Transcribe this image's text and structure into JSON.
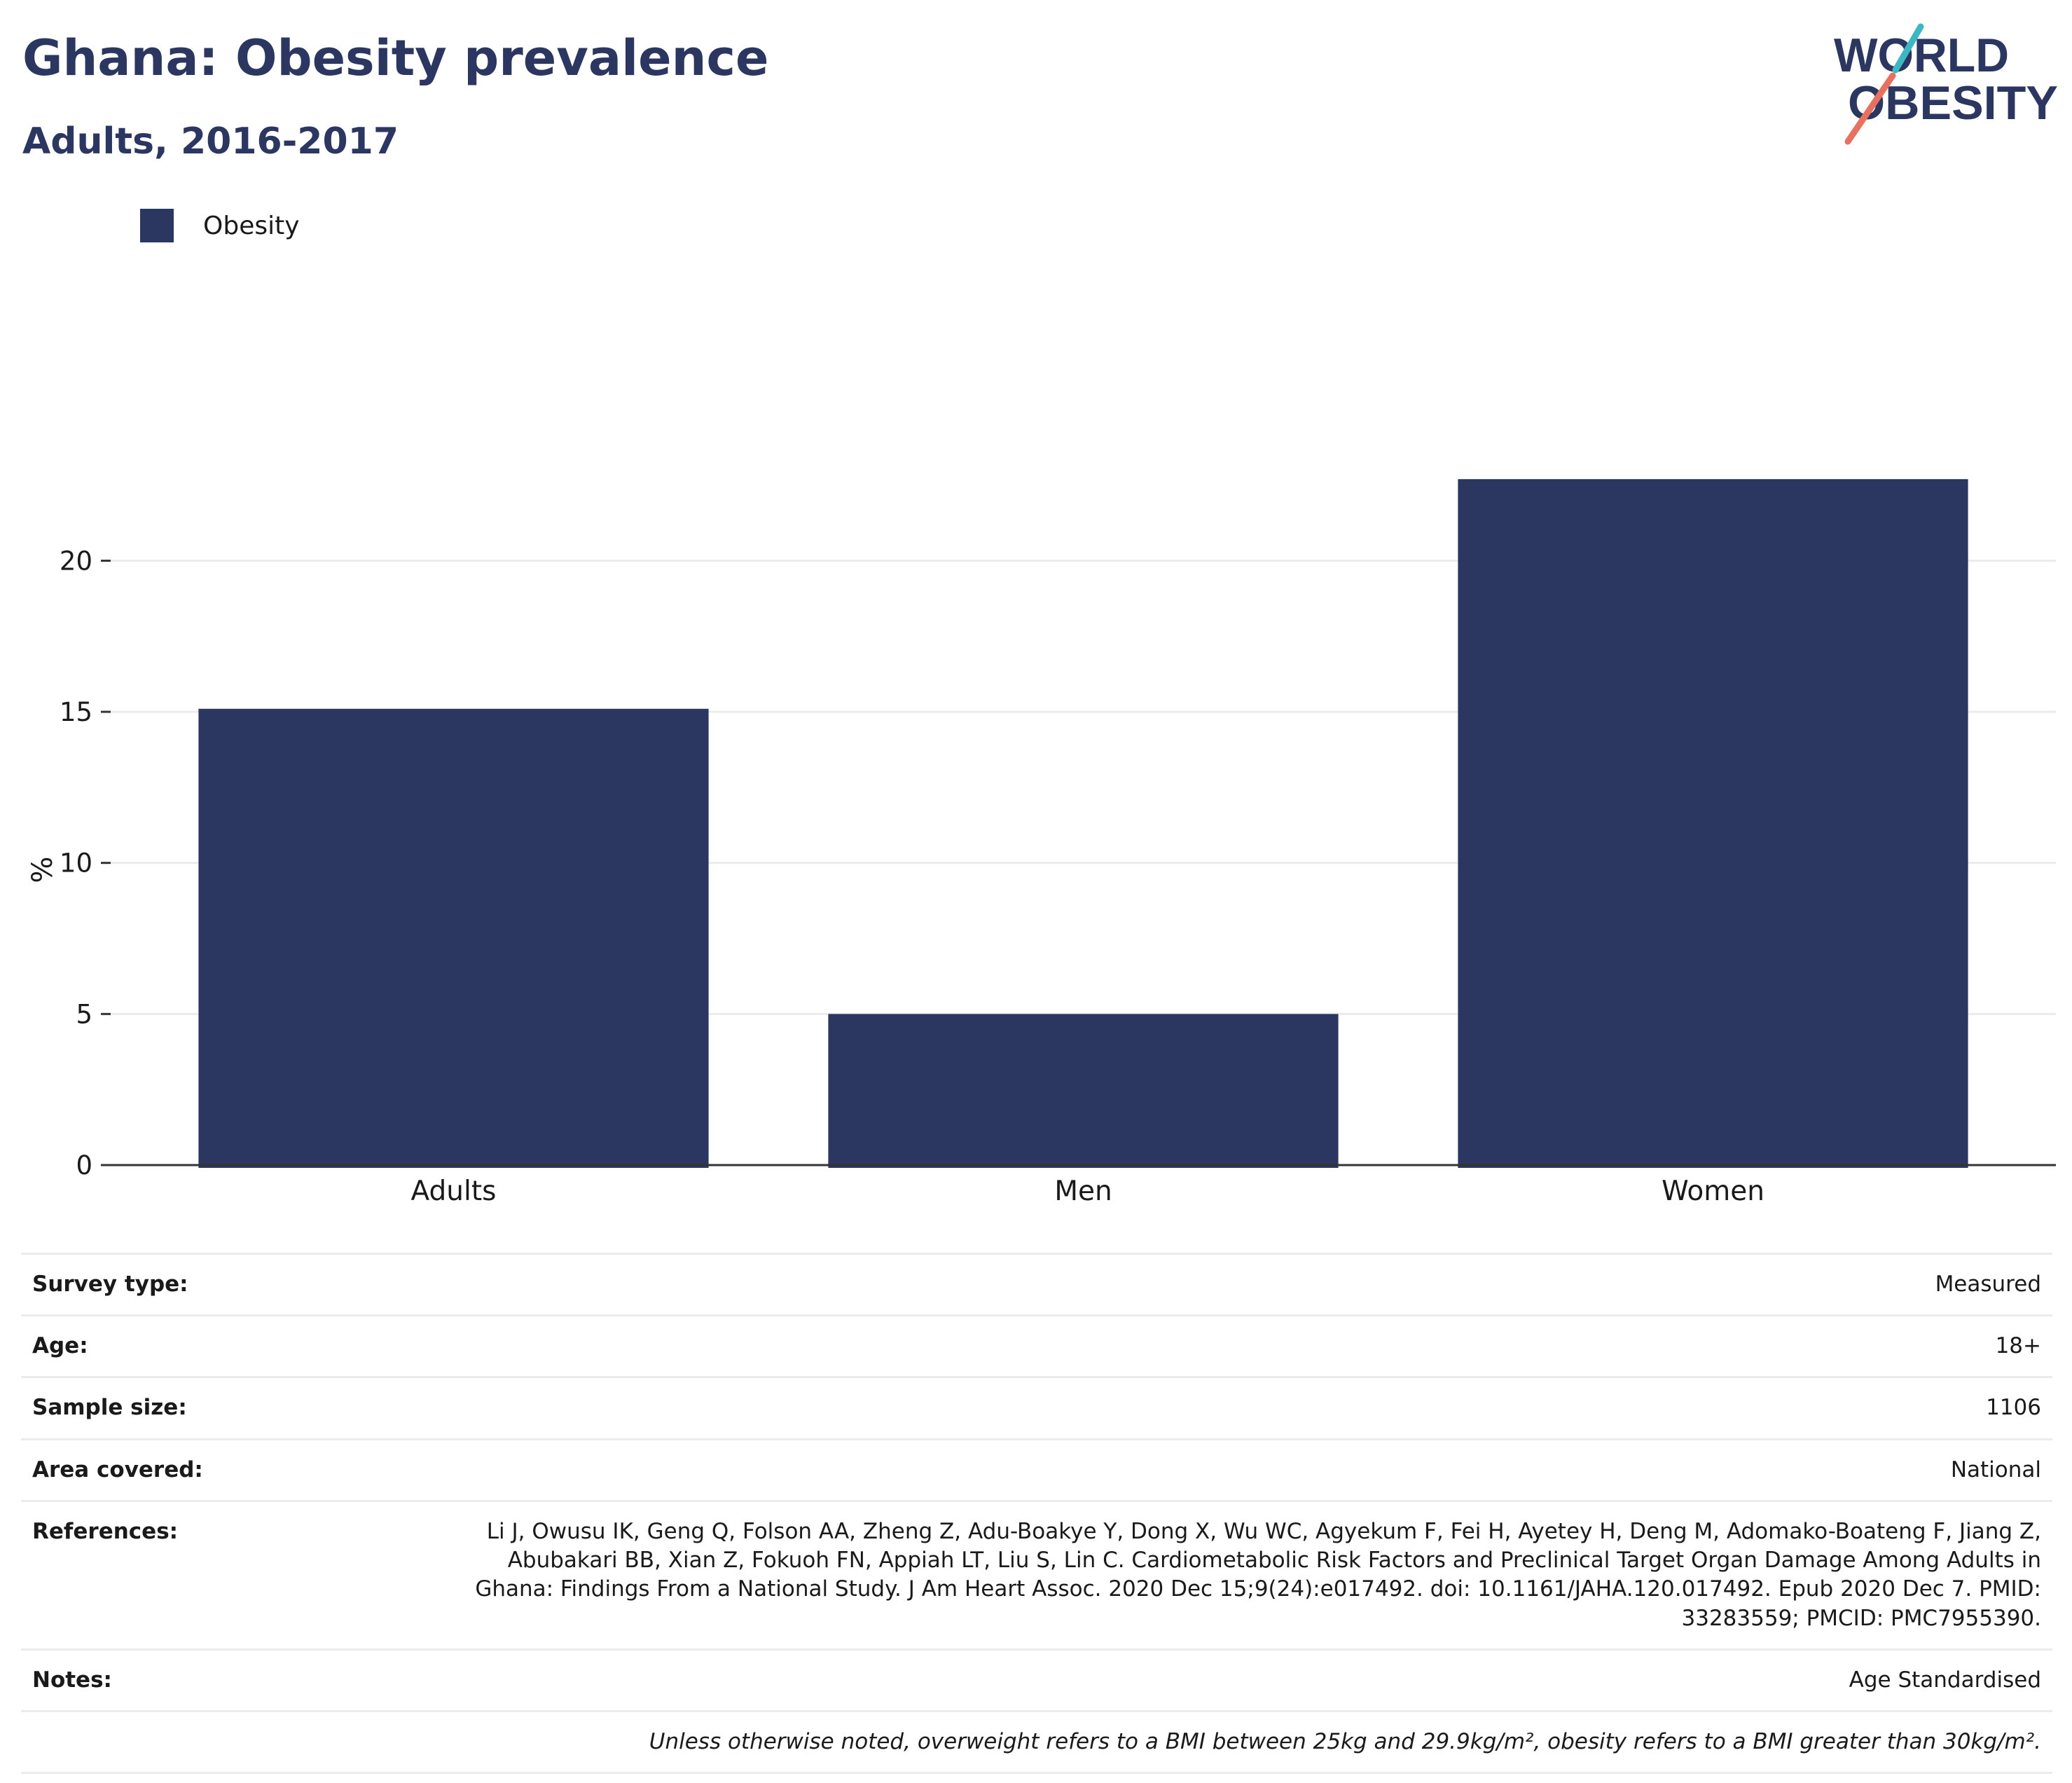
{
  "header": {
    "title": "Ghana: Obesity prevalence",
    "subtitle": "Adults, 2016-2017"
  },
  "logo": {
    "line1": "WORLD",
    "line2": "OBESITY",
    "primary_color": "#2b3661",
    "accent_teal": "#3bb8c3",
    "accent_coral": "#e8705f"
  },
  "chart_data": {
    "type": "bar",
    "categories": [
      "Adults",
      "Men",
      "Women"
    ],
    "series": [
      {
        "name": "Obesity",
        "values": [
          15.1,
          5.0,
          22.7
        ],
        "color": "#2b3661"
      }
    ],
    "title": "",
    "xlabel": "",
    "ylabel": "%",
    "ylim": [
      0,
      26.5
    ],
    "yticks": [
      0,
      5,
      10,
      15,
      20
    ],
    "grid": true,
    "legend_position": "top-left"
  },
  "info": {
    "rows": [
      {
        "label": "Survey type:",
        "value": "Measured"
      },
      {
        "label": "Age:",
        "value": "18+"
      },
      {
        "label": "Sample size:",
        "value": "1106"
      },
      {
        "label": "Area covered:",
        "value": "National"
      },
      {
        "label": "References:",
        "value": "Li J, Owusu IK, Geng Q, Folson AA, Zheng Z, Adu-Boakye Y, Dong X, Wu WC, Agyekum F, Fei H, Ayetey H, Deng M, Adomako-Boateng F, Jiang Z, Abubakari BB, Xian Z, Fokuoh FN, Appiah LT, Liu S, Lin C. Cardiometabolic Risk Factors and Preclinical Target Organ Damage Among Adults in Ghana: Findings From a National Study. J Am Heart Assoc. 2020 Dec 15;9(24):e017492. doi: 10.1161/JAHA.120.017492. Epub 2020 Dec 7. PMID: 33283559; PMCID: PMC7955390."
      },
      {
        "label": "Notes:",
        "value": "Age Standardised"
      }
    ],
    "footnote": "Unless otherwise noted, overweight refers to a BMI between 25kg and 29.9kg/m², obesity refers to a BMI greater than 30kg/m²."
  }
}
